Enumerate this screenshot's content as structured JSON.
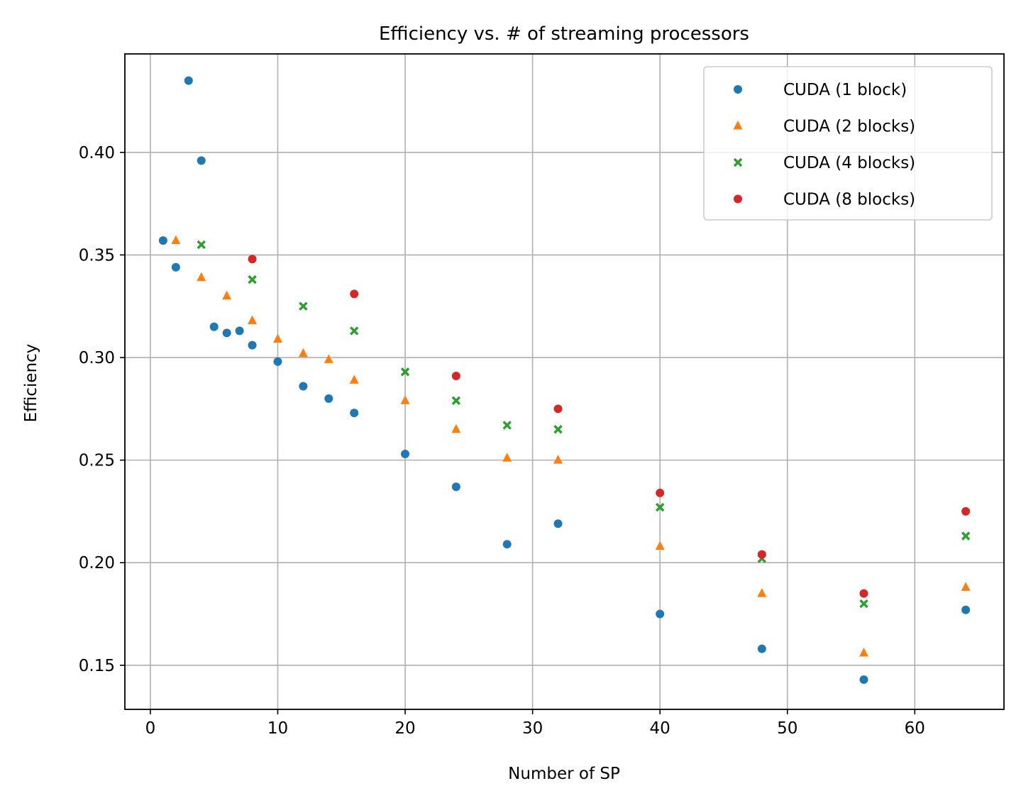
{
  "chart_data": {
    "type": "scatter",
    "title": "Efficiency vs. # of streaming processors",
    "xlabel": "Number of SP",
    "ylabel": "Efficiency",
    "xlim": [
      -2,
      67
    ],
    "ylim": [
      0.1285,
      0.448
    ],
    "x_ticks": [
      0,
      10,
      20,
      30,
      40,
      50,
      60
    ],
    "x_tick_labels": [
      "0",
      "10",
      "20",
      "30",
      "40",
      "50",
      "60"
    ],
    "y_ticks": [
      0.15,
      0.2,
      0.25,
      0.3,
      0.35,
      0.4
    ],
    "y_tick_labels": [
      "0.15",
      "0.20",
      "0.25",
      "0.30",
      "0.35",
      "0.40"
    ],
    "grid": true,
    "legend_position": "top-right",
    "series": [
      {
        "name": "CUDA (1 block)",
        "marker": "circle",
        "color": "#1f77b4",
        "x": [
          1,
          2,
          3,
          4,
          5,
          6,
          7,
          8,
          10,
          12,
          14,
          16,
          20,
          24,
          28,
          32,
          40,
          48,
          56,
          64
        ],
        "y": [
          0.357,
          0.344,
          0.435,
          0.396,
          0.315,
          0.312,
          0.313,
          0.306,
          0.298,
          0.286,
          0.28,
          0.273,
          0.253,
          0.237,
          0.209,
          0.219,
          0.175,
          0.158,
          0.143,
          0.177
        ]
      },
      {
        "name": "CUDA (2 blocks)",
        "marker": "triangle",
        "color": "#ff7f0e",
        "x": [
          2,
          4,
          6,
          8,
          10,
          12,
          14,
          16,
          20,
          24,
          28,
          32,
          40,
          48,
          56,
          64
        ],
        "y": [
          0.357,
          0.339,
          0.33,
          0.318,
          0.309,
          0.302,
          0.299,
          0.289,
          0.279,
          0.265,
          0.251,
          0.25,
          0.208,
          0.185,
          0.156,
          0.188
        ]
      },
      {
        "name": "CUDA (4 blocks)",
        "marker": "x",
        "color": "#2ca02c",
        "x": [
          4,
          8,
          12,
          16,
          20,
          24,
          28,
          32,
          40,
          48,
          56,
          64
        ],
        "y": [
          0.355,
          0.338,
          0.325,
          0.313,
          0.293,
          0.279,
          0.267,
          0.265,
          0.227,
          0.202,
          0.18,
          0.213
        ]
      },
      {
        "name": "CUDA (8 blocks)",
        "marker": "circle",
        "color": "#d62728",
        "x": [
          8,
          16,
          24,
          32,
          40,
          48,
          56,
          64
        ],
        "y": [
          0.348,
          0.331,
          0.291,
          0.275,
          0.234,
          0.204,
          0.185,
          0.225
        ]
      }
    ]
  }
}
